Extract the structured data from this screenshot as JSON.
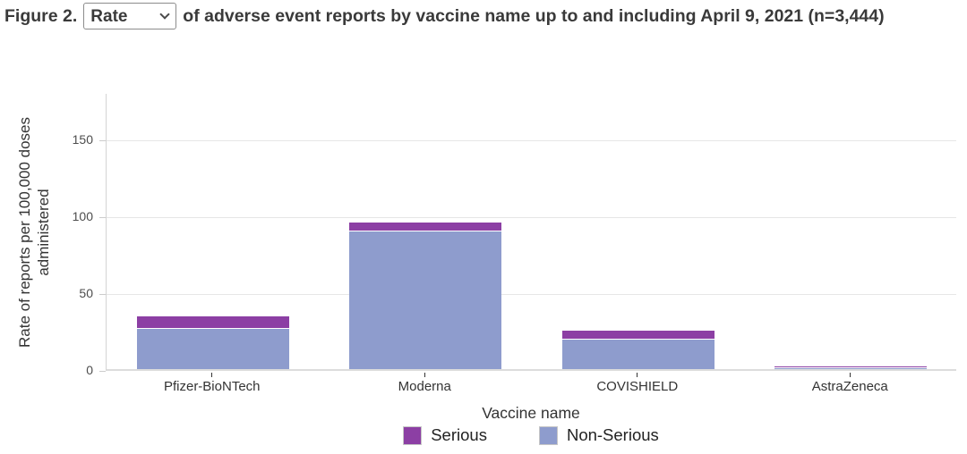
{
  "figure_title": {
    "prefix": "Figure 2.",
    "metric_dropdown": {
      "value": "Rate"
    },
    "suffix": "of adverse event reports by vaccine name up to and including April 9, 2021 (n=3,444)"
  },
  "chart_data": {
    "type": "bar",
    "stacked": true,
    "categories": [
      "Pfizer-BioNTech",
      "Moderna",
      "COVISHIELD",
      "AstraZeneca"
    ],
    "series": [
      {
        "name": "Serious",
        "color": "#8c3fa4",
        "values": [
          7,
          5,
          5,
          0.1
        ]
      },
      {
        "name": "Non-Serious",
        "color": "#8e9ccd",
        "values": [
          27,
          90,
          20,
          1.4
        ]
      }
    ],
    "xlabel": "Vaccine name",
    "ylabel": "Rate of reports per 100,000 doses administered",
    "yticks": [
      0,
      50,
      100,
      150
    ],
    "ylim": [
      0,
      180
    ],
    "grid": true,
    "legend_position": "bottom"
  },
  "colors": {
    "serious": "#8c3fa4",
    "non_serious": "#8e9ccd",
    "gridline": "#e6e6e6",
    "axis_line": "#d4d4d4",
    "title_text": "#3a3a3a"
  }
}
